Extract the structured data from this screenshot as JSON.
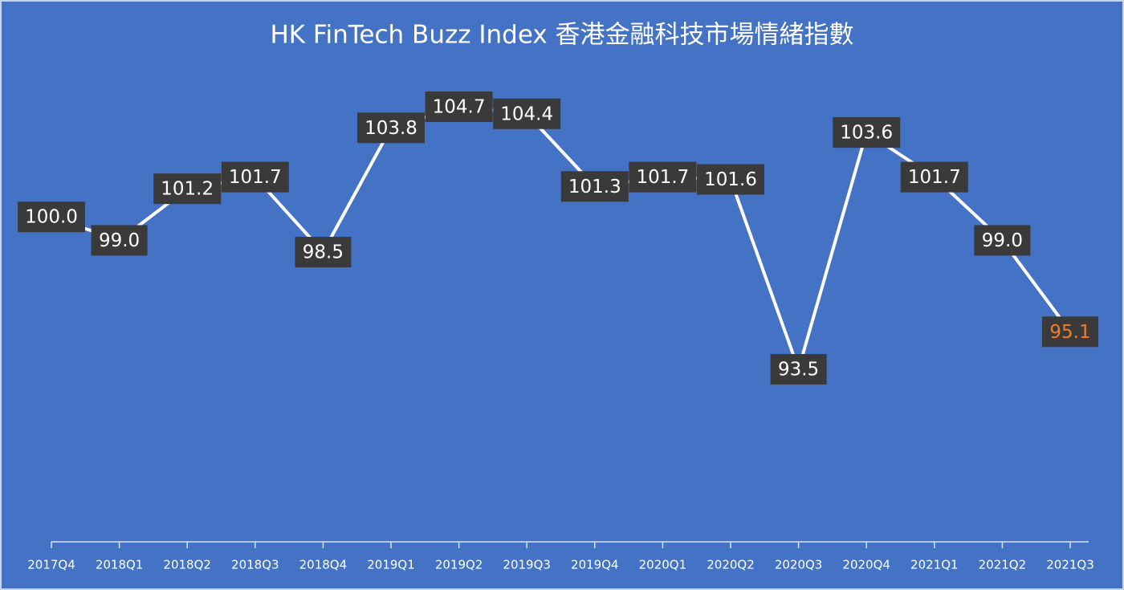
{
  "chart_data": {
    "type": "line",
    "title": "HK FinTech Buzz Index 香港金融科技市場情緒指數",
    "categories": [
      "2017Q4",
      "2018Q1",
      "2018Q2",
      "2018Q3",
      "2018Q4",
      "2019Q1",
      "2019Q2",
      "2019Q3",
      "2019Q4",
      "2020Q1",
      "2020Q2",
      "2020Q3",
      "2020Q4",
      "2021Q1",
      "2021Q2",
      "2021Q3"
    ],
    "values": [
      100.0,
      99.0,
      101.2,
      101.7,
      98.5,
      103.8,
      104.7,
      104.4,
      101.3,
      101.7,
      101.6,
      93.5,
      103.6,
      101.7,
      99.0,
      95.1
    ],
    "value_labels": [
      "100.0",
      "99.0",
      "101.2",
      "101.7",
      "98.5",
      "103.8",
      "104.7",
      "104.4",
      "101.3",
      "101.7",
      "101.6",
      "93.5",
      "103.6",
      "101.7",
      "99.0",
      "95.1"
    ],
    "color": "#ffffff",
    "label_color": "#ffffff",
    "last_label_color": "#ed7d31",
    "background": "#4472c4"
  }
}
